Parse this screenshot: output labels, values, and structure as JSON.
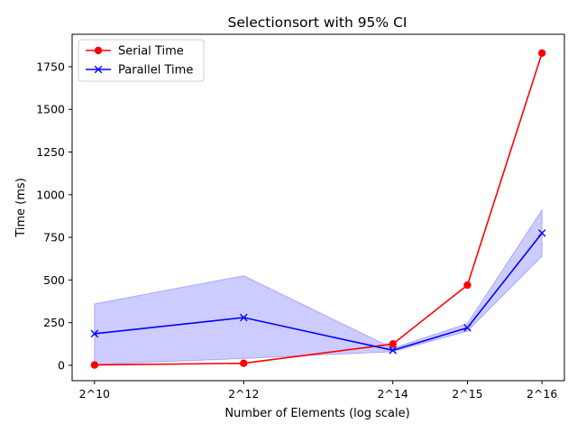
{
  "chart_data": {
    "type": "line",
    "title": "Selectionsort with 95% CI",
    "xlabel": "Number of Elements (log scale)",
    "ylabel": "Time (ms)",
    "x_scale": "log2",
    "x_values": [
      1024,
      4096,
      16384,
      32768,
      65536
    ],
    "x_tick_labels": [
      "2^10",
      "2^12",
      "2^14",
      "2^15",
      "2^16"
    ],
    "ylim": [
      -90,
      1940
    ],
    "y_ticks": [
      0,
      250,
      500,
      750,
      1000,
      1250,
      1500,
      1750
    ],
    "grid": false,
    "legend_position": "top-left",
    "series": [
      {
        "name": "Serial Time",
        "color": "#ff0000",
        "marker": "circle",
        "values": [
          2,
          12,
          125,
          470,
          1830
        ]
      },
      {
        "name": "Parallel Time",
        "color": "#0000ff",
        "marker": "x",
        "values": [
          185,
          280,
          88,
          220,
          775
        ],
        "ci_lower": [
          5,
          40,
          80,
          200,
          640
        ],
        "ci_upper": [
          360,
          525,
          100,
          245,
          910
        ],
        "ci_color": "#0000ff"
      }
    ]
  }
}
